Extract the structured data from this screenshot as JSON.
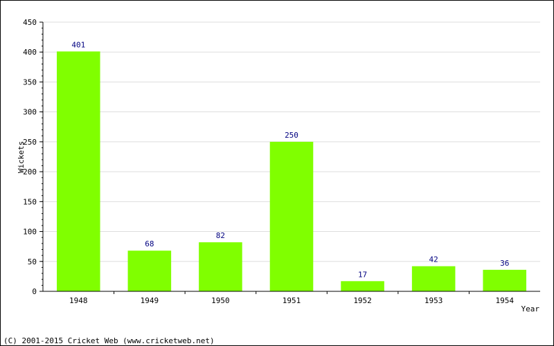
{
  "chart_data": {
    "type": "bar",
    "title": "",
    "xlabel": "Year",
    "ylabel": "Wickets",
    "categories": [
      "1948",
      "1949",
      "1950",
      "1951",
      "1952",
      "1953",
      "1954"
    ],
    "values": [
      401,
      68,
      82,
      250,
      17,
      42,
      36
    ],
    "data_labels": [
      "401",
      "68",
      "82",
      "250",
      "17",
      "42",
      "36"
    ],
    "ylim": [
      0,
      450
    ],
    "yticks": [
      0,
      50,
      100,
      150,
      200,
      250,
      300,
      350,
      400,
      450
    ],
    "ytick_labels": [
      "0",
      "50",
      "100",
      "150",
      "200",
      "250",
      "300",
      "350",
      "400",
      "450"
    ],
    "grid": true,
    "bar_color": "#80ff00",
    "label_color": "#000080",
    "grid_color": "#dddddd"
  },
  "footer": {
    "copyright": "(C) 2001-2015 Cricket Web (www.cricketweb.net)"
  }
}
